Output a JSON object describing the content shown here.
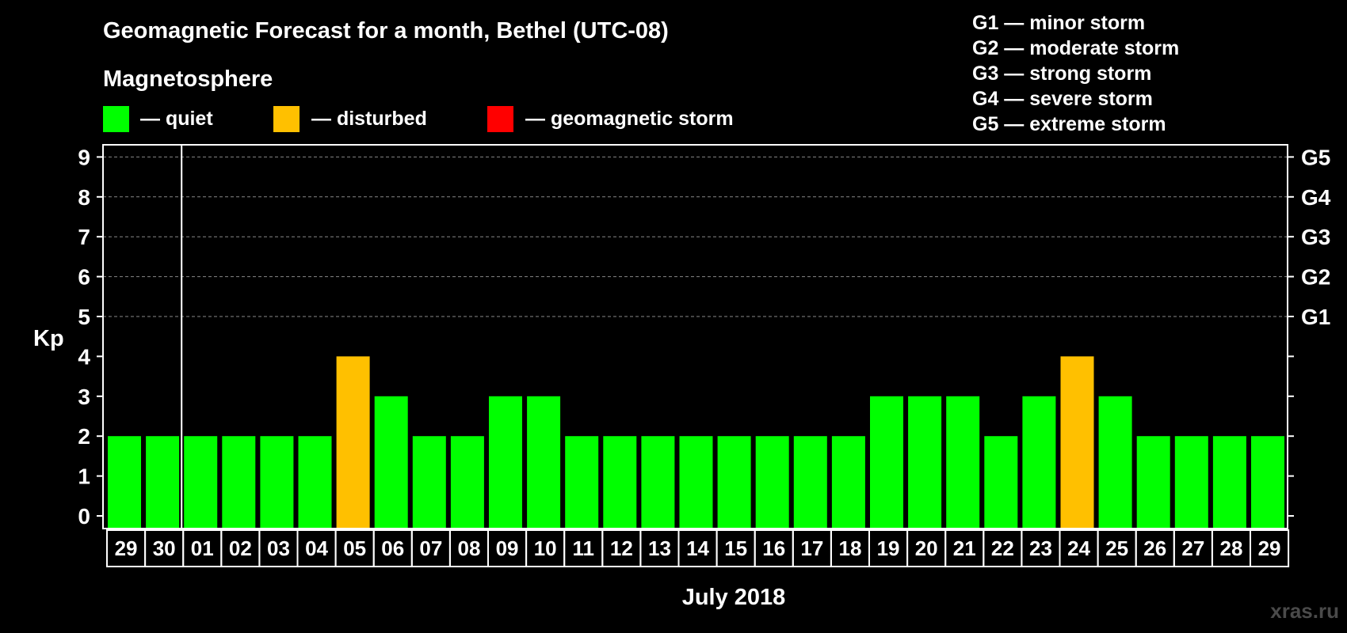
{
  "chart_data": {
    "type": "bar",
    "title": "Geomagnetic Forecast for a month, Bethel (UTC-08)",
    "subtitle": "Magnetosphere",
    "legend": [
      {
        "label": "— quiet",
        "color": "#00ff00"
      },
      {
        "label": "— disturbed",
        "color": "#ffc000"
      },
      {
        "label": "— geomagnetic storm",
        "color": "#ff0000"
      }
    ],
    "storm_levels": [
      "G1 — minor storm",
      "G2 — moderate storm",
      "G3 — strong storm",
      "G4 — severe storm",
      "G5 — extreme storm"
    ],
    "ylabel": "Kp",
    "xlabel": "July 2018",
    "ylim": [
      0,
      9
    ],
    "yticks": [
      "0",
      "1",
      "2",
      "3",
      "4",
      "5",
      "6",
      "7",
      "8",
      "9"
    ],
    "right_ticks": [
      {
        "kp": 5,
        "label": "G1"
      },
      {
        "kp": 6,
        "label": "G2"
      },
      {
        "kp": 7,
        "label": "G3"
      },
      {
        "kp": 8,
        "label": "G4"
      },
      {
        "kp": 9,
        "label": "G5"
      }
    ],
    "gridlines": [
      5,
      6,
      7,
      8,
      9
    ],
    "categories": [
      "29",
      "30",
      "01",
      "02",
      "03",
      "04",
      "05",
      "06",
      "07",
      "08",
      "09",
      "10",
      "11",
      "12",
      "13",
      "14",
      "15",
      "16",
      "17",
      "18",
      "19",
      "20",
      "21",
      "22",
      "23",
      "24",
      "25",
      "26",
      "27",
      "28",
      "29"
    ],
    "values": [
      2,
      2,
      2,
      2,
      2,
      2,
      4,
      3,
      2,
      2,
      3,
      3,
      2,
      2,
      2,
      2,
      2,
      2,
      2,
      2,
      3,
      3,
      3,
      2,
      3,
      4,
      3,
      2,
      2,
      2,
      2
    ],
    "month_divider_after_index": 1,
    "colors": {
      "quiet": "#00ff00",
      "disturbed": "#ffc000",
      "storm": "#ff0000",
      "grid": "#888888",
      "axis": "#ffffff"
    }
  },
  "credit": "xras.ru"
}
